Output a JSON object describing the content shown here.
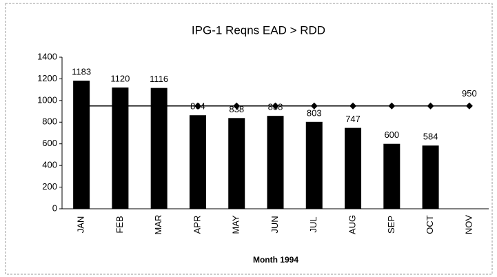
{
  "chart_data": {
    "type": "bar-line",
    "title": "IPG-1 Reqns   EAD > RDD",
    "x_label": "Month 1994",
    "categories": [
      "JAN",
      "FEB",
      "MAR",
      "APR",
      "MAY",
      "JUN",
      "JUL",
      "AUG",
      "SEP",
      "OCT",
      "NOV"
    ],
    "series": [
      {
        "type": "bar",
        "color": "#000000",
        "values": [
          1183,
          1120,
          1116,
          864,
          838,
          858,
          803,
          747,
          600,
          584,
          null
        ]
      },
      {
        "type": "line",
        "color": "#000000",
        "values": [
          950,
          950,
          950,
          950,
          950,
          950,
          950,
          950,
          950,
          950,
          950
        ],
        "value_labels": [
          null,
          null,
          null,
          null,
          null,
          null,
          null,
          null,
          null,
          null,
          "950"
        ]
      }
    ],
    "ylim": [
      0,
      1400
    ],
    "yticks": [
      0,
      200,
      400,
      600,
      800,
      1000,
      1200,
      1400
    ],
    "grid": false
  }
}
